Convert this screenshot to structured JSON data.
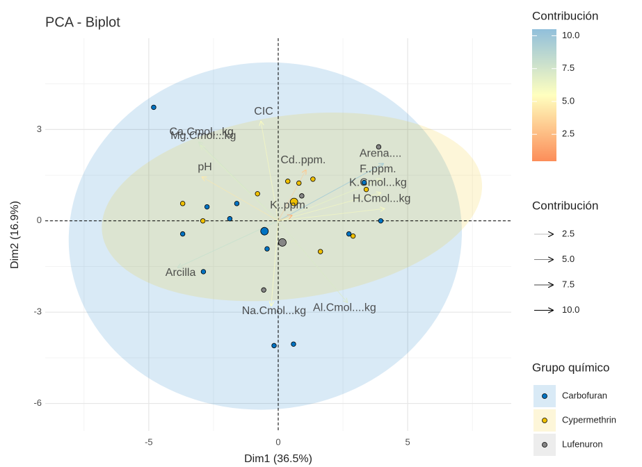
{
  "chart_data": {
    "type": "biplot",
    "title": "PCA - Biplot",
    "x_label": "Dim1 (36.5%)",
    "y_label": "Dim2 (16.9%)",
    "xlim": [
      -9,
      9
    ],
    "ylim": [
      -6.9,
      6.0
    ],
    "xticks": [
      -5,
      0,
      5
    ],
    "yticks": [
      -6,
      -3,
      0,
      3
    ],
    "grid": true,
    "groups_title": "Grupo químico",
    "series": [
      {
        "name": "Carbofuran",
        "color": "#0073C2",
        "x": [
          -4.81,
          -2.75,
          -1.6,
          -1.87,
          -3.69,
          -2.89,
          -0.53,
          -0.43,
          -0.16,
          0.59,
          3.96,
          2.73,
          3.32
        ],
        "y": [
          3.73,
          0.46,
          0.57,
          0.07,
          -0.43,
          -1.67,
          -0.32,
          -0.92,
          -4.1,
          -4.05,
          0.0,
          -0.43,
          1.26
        ],
        "centroid": [
          -0.53,
          -0.34
        ],
        "ellipse": {
          "cx": -0.5,
          "cy": -0.5,
          "rx": 7.6,
          "ry": 5.7,
          "angle": 5
        }
      },
      {
        "name": "Cypermethrin",
        "color": "#EFC000",
        "x": [
          -3.69,
          -2.91,
          -0.8,
          0.37,
          1.34,
          0.8,
          3.4,
          2.89,
          1.63
        ],
        "y": [
          0.57,
          0.0,
          0.89,
          1.3,
          1.37,
          1.24,
          1.03,
          -0.5,
          -1.01
        ],
        "centroid": [
          0.61,
          0.62
        ],
        "ellipse": {
          "cx": 0.53,
          "cy": 0.46,
          "rx": 7.4,
          "ry": 3.0,
          "angle": 8
        }
      },
      {
        "name": "Lufenuron",
        "color": "#868686",
        "x": [
          3.88,
          0.91,
          -0.56
        ],
        "y": [
          2.43,
          0.82,
          -2.27
        ],
        "centroid": [
          0.16,
          -0.71
        ]
      }
    ],
    "variables": {
      "labels": [
        "Arena....",
        "F..ppm.",
        "K.Cmol...kg",
        "H.Cmol...kg",
        "Cd..ppm.",
        "K..ppm.",
        "CIC",
        "Ca.Cmol...kg",
        "Mg.Cmol...kg",
        "pH",
        "Arcilla",
        "Na.Cmol...kg",
        "Al.Cmol....kg"
      ],
      "x": [
        4.06,
        3.96,
        3.96,
        4.1,
        1.07,
        0.53,
        -0.67,
        -3.07,
        -3.0,
        -2.94,
        -3.88,
        -0.27,
        2.67
      ],
      "y": [
        1.88,
        1.37,
        0.92,
        0.4,
        1.67,
        0.18,
        3.27,
        2.59,
        2.47,
        1.44,
        -1.53,
        -2.79,
        -2.68
      ],
      "contrib": [
        9.5,
        6.5,
        6.0,
        6.0,
        3.0,
        2.0,
        5.8,
        7.5,
        7.0,
        4.5,
        8.0,
        5.5,
        7.2
      ]
    },
    "colorbar": {
      "title": "Contribución",
      "lim": [
        0.45,
        10.5
      ],
      "colors": [
        "#FC8D59",
        "#FFFFBF",
        "#91BFDB"
      ],
      "ticks": [
        {
          "value": 10,
          "label": "10.0"
        },
        {
          "value": 7.5,
          "label": "7.5"
        },
        {
          "value": 5,
          "label": "5.0"
        },
        {
          "value": 2.5,
          "label": "2.5"
        }
      ]
    },
    "alpha_legend": {
      "title": "Contribución",
      "ticks": [
        {
          "value": 2.5,
          "label": "2.5"
        },
        {
          "value": 5,
          "label": "5.0"
        },
        {
          "value": 7.5,
          "label": "7.5"
        },
        {
          "value": 10,
          "label": "10.0"
        }
      ]
    }
  }
}
